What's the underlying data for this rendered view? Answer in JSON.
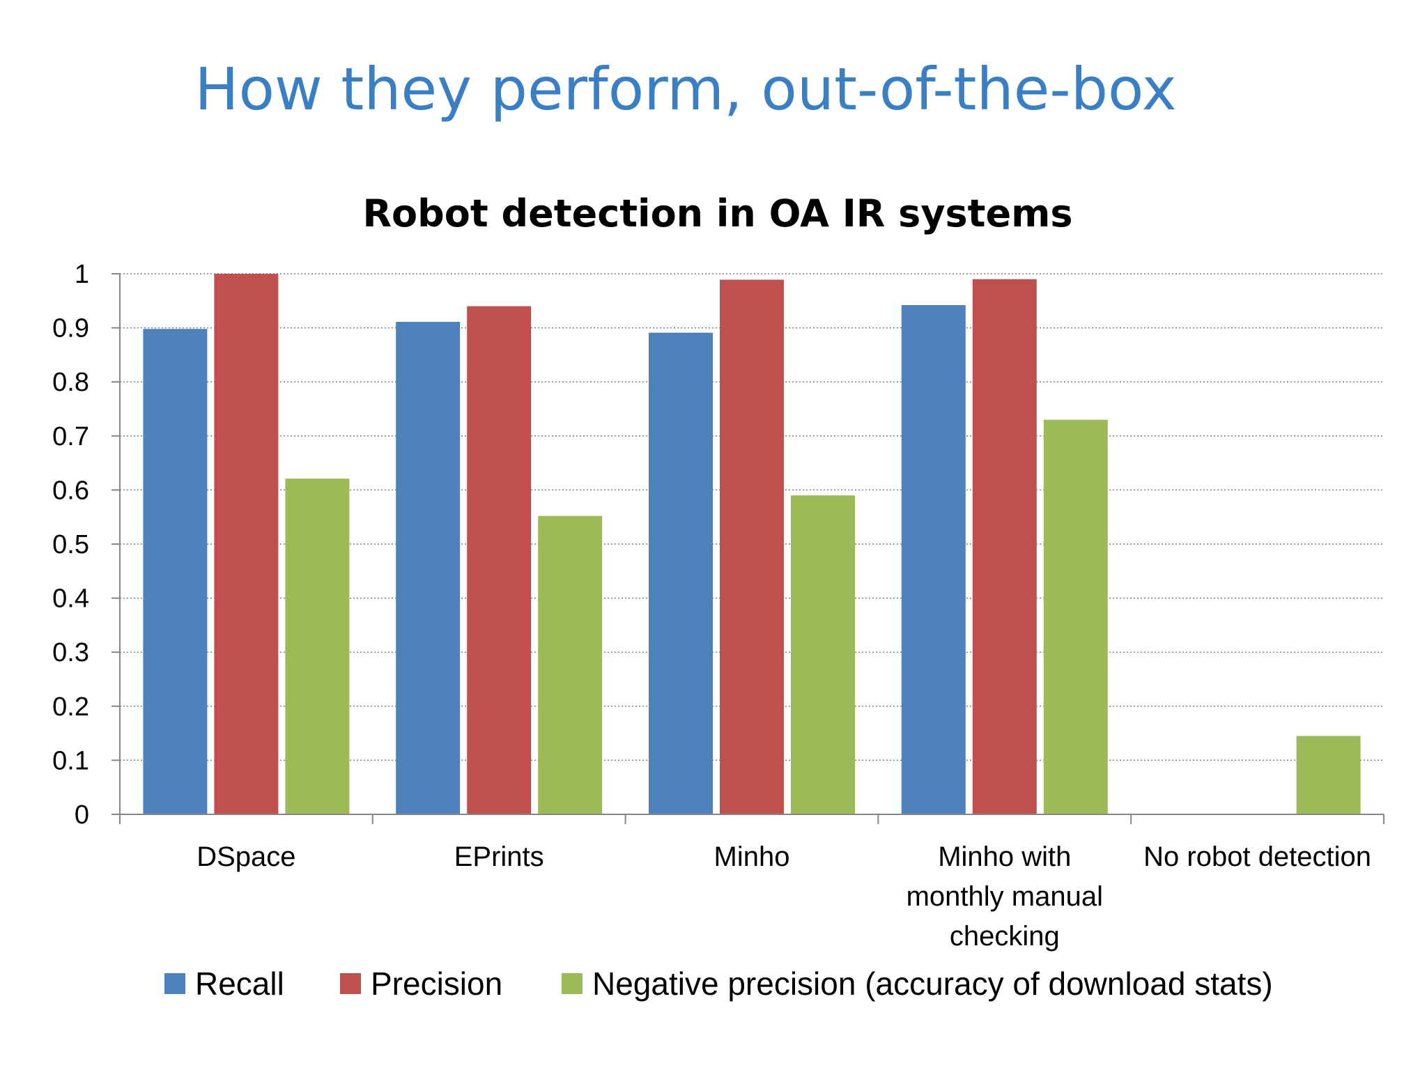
{
  "slide": {
    "title": "How they perform, out-of-the-box",
    "title_color": "#3A7FC4"
  },
  "chart_data": {
    "type": "bar",
    "title": "Robot detection in OA IR systems",
    "xlabel": "",
    "ylabel": "",
    "ylim": [
      0,
      1
    ],
    "yticks": [
      0,
      0.1,
      0.2,
      0.3,
      0.4,
      0.5,
      0.6,
      0.7,
      0.8,
      0.9,
      1
    ],
    "ytick_labels": [
      "0",
      "0.1",
      "0.2",
      "0.3",
      "0.4",
      "0.5",
      "0.6",
      "0.7",
      "0.8",
      "0.9",
      "1"
    ],
    "grid": "horizontal-dotted",
    "legend_position": "bottom",
    "categories": [
      [
        "DSpace"
      ],
      [
        "EPrints"
      ],
      [
        "Minho"
      ],
      [
        "Minho with",
        "monthly manual",
        "checking"
      ],
      [
        "No robot detection"
      ]
    ],
    "series": [
      {
        "name": "Recall",
        "color": "#4F81BD",
        "values": [
          0.898,
          0.911,
          0.891,
          0.942,
          null
        ]
      },
      {
        "name": "Precision",
        "color": "#C0504D",
        "values": [
          1.0,
          0.94,
          0.989,
          0.99,
          null
        ]
      },
      {
        "name": "Negative precision (accuracy of download stats)",
        "color": "#9BBB59",
        "values": [
          0.621,
          0.552,
          0.59,
          0.73,
          0.145
        ]
      }
    ]
  }
}
